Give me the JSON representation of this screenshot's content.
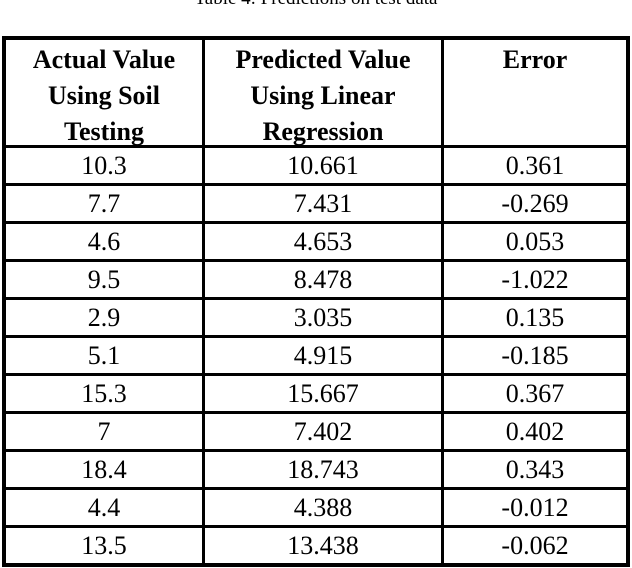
{
  "caption": "Table 4: Predictions on test data",
  "table": {
    "headers": [
      {
        "lines": [
          "Actual Value",
          "Using Soil",
          "Testing"
        ]
      },
      {
        "lines": [
          "Predicted Value",
          "Using Linear",
          "Regression"
        ]
      },
      {
        "lines": [
          "Error"
        ]
      }
    ],
    "rows": [
      [
        "10.3",
        "10.661",
        "0.361"
      ],
      [
        "7.7",
        "7.431",
        "-0.269"
      ],
      [
        "4.6",
        "4.653",
        "0.053"
      ],
      [
        "9.5",
        "8.478",
        "-1.022"
      ],
      [
        "2.9",
        "3.035",
        "0.135"
      ],
      [
        "5.1",
        "4.915",
        "-0.185"
      ],
      [
        "15.3",
        "15.667",
        "0.367"
      ],
      [
        "7",
        "7.402",
        "0.402"
      ],
      [
        "18.4",
        "18.743",
        "0.343"
      ],
      [
        "4.4",
        "4.388",
        "-0.012"
      ],
      [
        "13.5",
        "13.438",
        "-0.062"
      ]
    ]
  },
  "chart_data": {
    "type": "table",
    "title": "Table 4: Predictions on test data",
    "columns": [
      "Actual Value Using Soil Testing",
      "Predicted Value Using Linear Regression",
      "Error"
    ],
    "rows": [
      [
        10.3,
        10.661,
        0.361
      ],
      [
        7.7,
        7.431,
        -0.269
      ],
      [
        4.6,
        4.653,
        0.053
      ],
      [
        9.5,
        8.478,
        -1.022
      ],
      [
        2.9,
        3.035,
        0.135
      ],
      [
        5.1,
        4.915,
        -0.185
      ],
      [
        15.3,
        15.667,
        0.367
      ],
      [
        7,
        7.402,
        0.402
      ],
      [
        18.4,
        18.743,
        0.343
      ],
      [
        4.4,
        4.388,
        -0.012
      ],
      [
        13.5,
        13.438,
        -0.062
      ]
    ]
  },
  "colors": {
    "background": "#ffffff",
    "text": "#000000",
    "rule": "#000000"
  }
}
